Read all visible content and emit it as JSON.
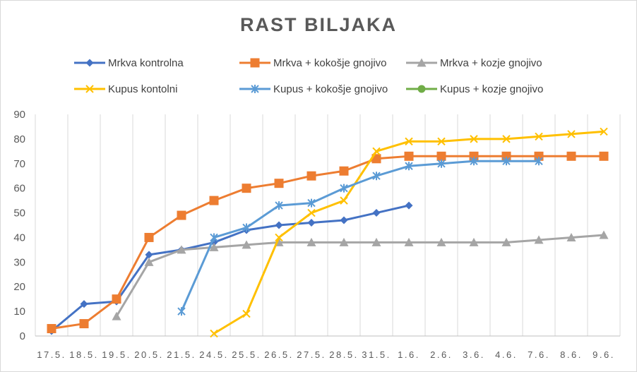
{
  "chart_data": {
    "type": "line",
    "title": "RAST BILJAKA",
    "xlabel": "",
    "ylabel": "",
    "ylim": [
      0,
      90
    ],
    "yticks": [
      0,
      10,
      20,
      30,
      40,
      50,
      60,
      70,
      80,
      90
    ],
    "grid": "vertical",
    "legend_position": "top",
    "categories": [
      "17.5.",
      "18.5.",
      "19.5.",
      "20.5.",
      "21.5.",
      "24.5.",
      "25.5.",
      "26.5.",
      "27.5.",
      "28.5.",
      "31.5.",
      "1.6.",
      "2.6.",
      "3.6.",
      "4.6.",
      "7.6.",
      "8.6.",
      "9.6."
    ],
    "series": [
      {
        "name": "Mrkva kontrolna",
        "color": "#4472c4",
        "marker": "diamond",
        "values": [
          2,
          13,
          14,
          33,
          35,
          38,
          43,
          45,
          46,
          47,
          50,
          53,
          null,
          null,
          null,
          null,
          null,
          null
        ]
      },
      {
        "name": "Mrkva + kokošje gnojivo",
        "color": "#ed7d31",
        "marker": "square",
        "values": [
          3,
          5,
          15,
          40,
          49,
          55,
          60,
          62,
          65,
          67,
          72,
          73,
          73,
          73,
          73,
          73,
          73,
          73
        ]
      },
      {
        "name": "Mrkva + kozje gnojivo",
        "color": "#a5a5a5",
        "marker": "triangle",
        "values": [
          null,
          null,
          8,
          30,
          35,
          36,
          37,
          38,
          38,
          38,
          38,
          38,
          38,
          38,
          38,
          39,
          40,
          41
        ]
      },
      {
        "name": "Kupus kontolni",
        "color": "#ffc000",
        "marker": "x",
        "values": [
          null,
          null,
          null,
          null,
          null,
          1,
          9,
          40,
          50,
          55,
          75,
          79,
          79,
          80,
          80,
          81,
          82,
          83
        ]
      },
      {
        "name": "Kupus + kokošje gnojivo",
        "color": "#5b9bd5",
        "marker": "star",
        "values": [
          null,
          null,
          null,
          null,
          10,
          40,
          44,
          53,
          54,
          60,
          65,
          69,
          70,
          71,
          71,
          71,
          null,
          null
        ]
      },
      {
        "name": "Kupus + kozje gnojivo",
        "color": "#70ad47",
        "marker": "circle",
        "values": [
          null,
          null,
          null,
          null,
          null,
          null,
          null,
          null,
          null,
          null,
          null,
          null,
          null,
          null,
          null,
          null,
          null,
          null
        ]
      }
    ]
  }
}
